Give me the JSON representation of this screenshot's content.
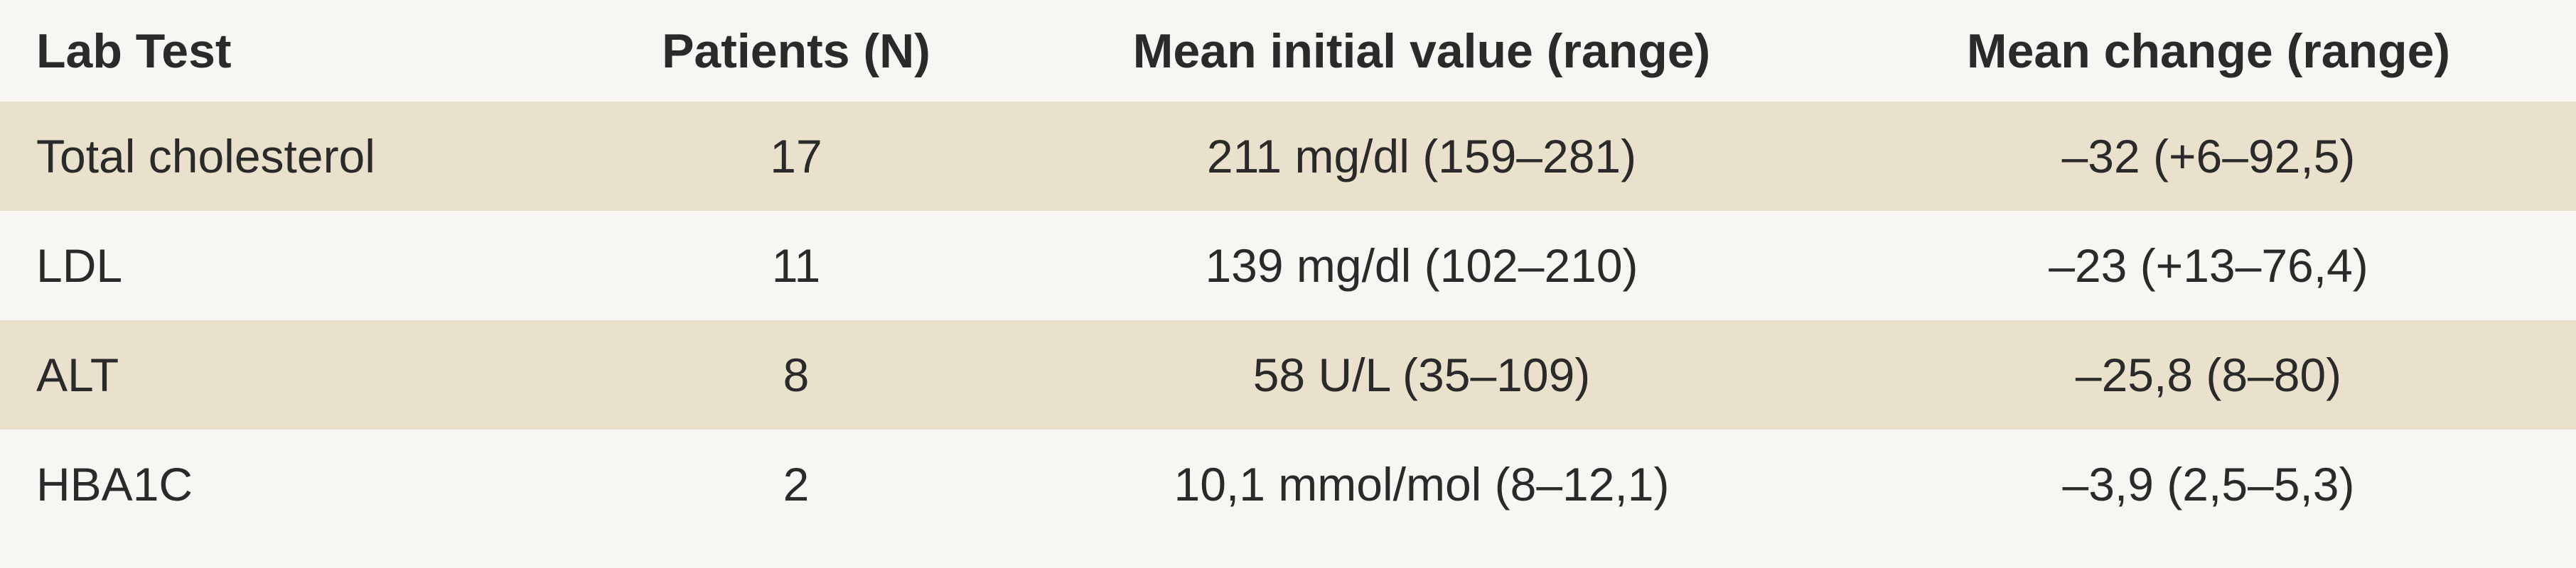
{
  "table": {
    "header": [
      "Lab Test",
      "Patients (N)",
      "Mean initial value (range)",
      "Mean change (range)"
    ],
    "rows": [
      [
        "Total cholesterol",
        "17",
        "211 mg/dl (159–281)",
        "–32 (+6–92,5)"
      ],
      [
        "LDL",
        "11",
        "139 mg/dl (102–210)",
        "–23 (+13–76,4)"
      ],
      [
        "ALT",
        "8",
        "58 U/L (35–109)",
        "–25,8 (8–80)"
      ],
      [
        "HBA1C",
        "2",
        "10,1 mmol/mol (8–12,1)",
        "–3,9 (2,5–5,3)"
      ]
    ]
  }
}
